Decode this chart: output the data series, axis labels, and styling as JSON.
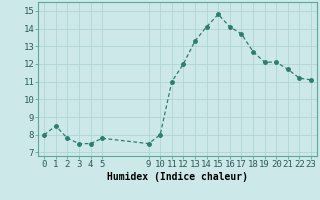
{
  "x": [
    0,
    1,
    2,
    3,
    4,
    5,
    9,
    10,
    11,
    12,
    13,
    14,
    15,
    16,
    17,
    18,
    19,
    20,
    21,
    22,
    23
  ],
  "y": [
    8.0,
    8.5,
    7.8,
    7.5,
    7.5,
    7.8,
    7.5,
    8.0,
    11.0,
    12.0,
    13.3,
    14.1,
    14.8,
    14.1,
    13.7,
    12.7,
    12.1,
    12.1,
    11.7,
    11.2,
    11.1
  ],
  "xticks": [
    0,
    1,
    2,
    3,
    4,
    5,
    9,
    10,
    11,
    12,
    13,
    14,
    15,
    16,
    17,
    18,
    19,
    20,
    21,
    22,
    23
  ],
  "yticks": [
    7,
    8,
    9,
    10,
    11,
    12,
    13,
    14,
    15
  ],
  "ylim": [
    6.8,
    15.5
  ],
  "xlim": [
    -0.5,
    23.5
  ],
  "xlabel": "Humidex (Indice chaleur)",
  "line_color": "#2e7d6e",
  "marker_size": 2.5,
  "bg_color": "#cce8e8",
  "grid_color": "#b0d4d4",
  "label_font_size": 7,
  "tick_font_size": 6.5
}
